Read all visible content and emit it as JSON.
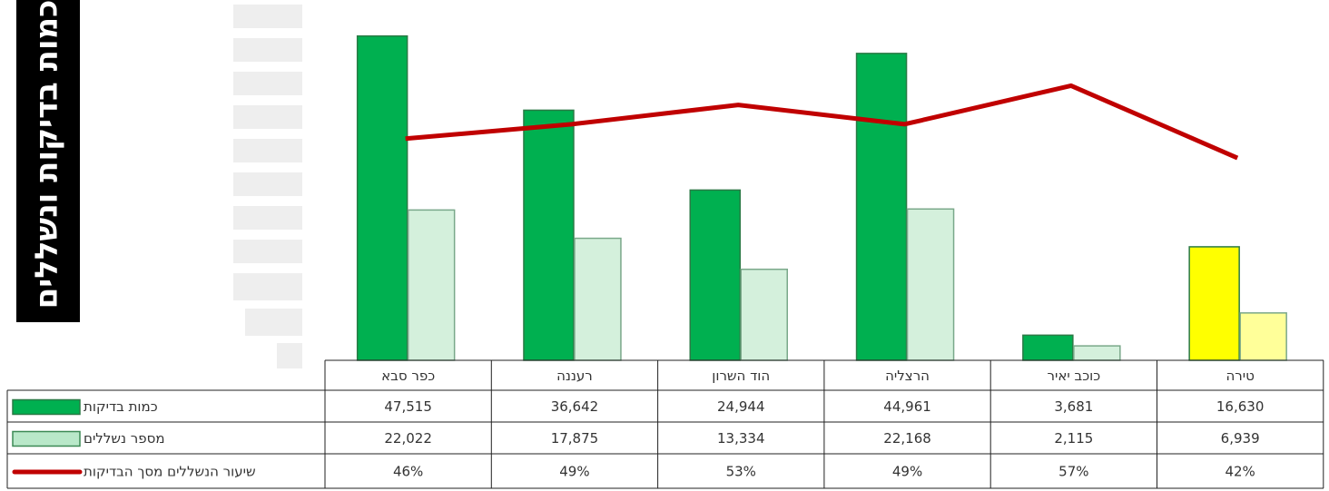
{
  "chart_data": {
    "type": "bar",
    "title": "כמות בדיקות ונשללים",
    "categories": [
      "כפר סבא",
      "רעננה",
      "הוד השרון",
      "הרצליה",
      "כוכב יאיר",
      "טירה"
    ],
    "ylim": [
      0,
      48000
    ],
    "y2lim": [
      0,
      68
    ],
    "series": [
      {
        "name": "כמות בדיקות",
        "type": "bar",
        "color": "#00b050",
        "colors": [
          "#00b050",
          "#00b050",
          "#00b050",
          "#00b050",
          "#00b050",
          "#ffff00"
        ],
        "values": [
          47515,
          36642,
          24944,
          44961,
          3681,
          16630
        ],
        "value_labels": [
          "47,515",
          "36,642",
          "24,944",
          "44,961",
          "3,681",
          "16,630"
        ]
      },
      {
        "name": "מספר נשללים",
        "type": "bar",
        "color": "#b9e8c9",
        "colors": [
          "#d4f0dc",
          "#d4f0dc",
          "#d4f0dc",
          "#d4f0dc",
          "#d4f0dc",
          "#ffff99"
        ],
        "values": [
          22022,
          17875,
          13334,
          22168,
          2115,
          6939
        ],
        "value_labels": [
          "22,022",
          "17,875",
          "13,334",
          "22,168",
          "2,115",
          "6,939"
        ]
      },
      {
        "name": "שיעור הנשללים מסך הבדיקות",
        "type": "line",
        "axis": "y2",
        "color": "#c00000",
        "values": [
          46,
          49,
          53,
          49,
          57,
          42
        ],
        "value_labels": [
          "46%",
          "49%",
          "53%",
          "49%",
          "57%",
          "42%"
        ]
      }
    ]
  }
}
